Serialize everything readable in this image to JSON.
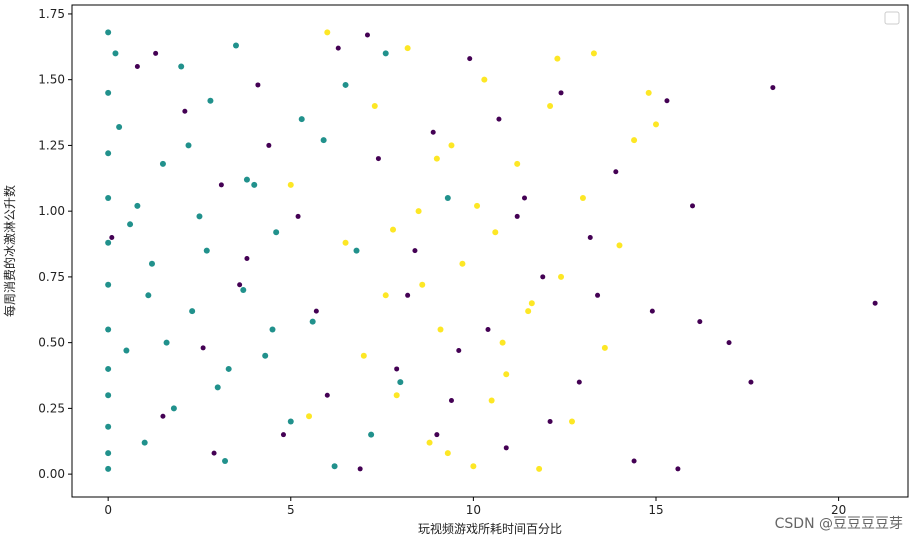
{
  "chart_data": {
    "type": "scatter",
    "xlabel": "玩视频游戏所耗时间百分比",
    "ylabel": "每周消费的冰激淋公升数",
    "annotation": "CSDN @豆豆豆豆芽",
    "xlim": [
      -0.99,
      21.9
    ],
    "ylim": [
      -0.087,
      1.784
    ],
    "xticks": [
      0,
      5,
      10,
      15,
      20
    ],
    "yticks": [
      {
        "value": 0,
        "label": "0.00"
      },
      {
        "value": 0.25,
        "label": "0.25"
      },
      {
        "value": 0.5,
        "label": "0.50"
      },
      {
        "value": 0.75,
        "label": "0.75"
      },
      {
        "value": 1,
        "label": "1.00"
      },
      {
        "value": 1.25,
        "label": "1.25"
      },
      {
        "value": 1.5,
        "label": "1.50"
      },
      {
        "value": 1.75,
        "label": "1.75"
      }
    ],
    "legend": "upper right",
    "series": [
      {
        "color": "#21918c",
        "x": [
          0,
          0,
          0,
          0,
          0,
          0,
          0,
          0,
          0,
          0,
          0,
          0,
          0.3,
          0.5,
          0.8,
          1.0,
          1.2,
          1.5,
          1.8,
          2.0,
          2.3,
          2.5,
          2.8,
          3.0,
          3.2,
          3.5,
          3.7,
          4.0,
          4.3,
          4.6,
          5.0,
          5.3,
          5.6,
          5.9,
          6.2,
          6.5,
          6.8,
          7.2,
          7.6,
          8.0,
          0.2,
          0.6,
          1.1,
          1.6,
          2.2,
          2.7,
          3.3,
          3.8,
          4.5,
          9.3
        ],
        "values": [
          1.68,
          1.45,
          1.22,
          1.05,
          0.88,
          0.72,
          0.55,
          0.4,
          0.3,
          0.18,
          0.08,
          0.02,
          1.32,
          0.47,
          1.02,
          0.12,
          0.8,
          1.18,
          0.25,
          1.55,
          0.62,
          0.98,
          1.42,
          0.33,
          0.05,
          1.63,
          0.7,
          1.1,
          0.45,
          0.92,
          0.2,
          1.35,
          0.58,
          1.27,
          0.03,
          1.48,
          0.85,
          0.15,
          1.6,
          0.35,
          1.6,
          0.95,
          0.68,
          0.5,
          1.25,
          0.85,
          0.4,
          1.12,
          0.55,
          1.05
        ]
      },
      {
        "color": "#440154",
        "x": [
          0.1,
          0.8,
          1.5,
          2.1,
          2.6,
          3.1,
          3.6,
          4.1,
          4.8,
          5.2,
          5.7,
          6.3,
          6.9,
          7.4,
          7.9,
          8.4,
          8.9,
          9.4,
          9.9,
          10.4,
          10.9,
          11.4,
          11.9,
          12.4,
          12.9,
          13.4,
          13.9,
          14.4,
          14.9,
          15.3,
          15.6,
          16.0,
          16.2,
          17.0,
          17.6,
          18.2,
          21.0,
          2.9,
          4.4,
          6.0,
          8.2,
          9.6,
          10.7,
          12.1,
          13.2,
          1.3,
          3.8,
          7.1,
          9.0,
          11.2
        ],
        "values": [
          0.9,
          1.55,
          0.22,
          1.38,
          0.48,
          1.1,
          0.72,
          1.48,
          0.15,
          0.98,
          0.62,
          1.62,
          0.02,
          1.2,
          0.4,
          0.85,
          1.3,
          0.28,
          1.58,
          0.55,
          0.1,
          1.05,
          0.75,
          1.45,
          0.35,
          0.68,
          1.15,
          0.05,
          0.62,
          1.42,
          0.02,
          1.02,
          0.58,
          0.5,
          0.35,
          1.47,
          0.65,
          0.08,
          1.25,
          0.3,
          0.68,
          0.47,
          1.35,
          0.2,
          0.9,
          1.6,
          0.82,
          1.67,
          0.15,
          0.98
        ]
      },
      {
        "color": "#fde725",
        "x": [
          5.0,
          5.5,
          6.0,
          6.5,
          7.0,
          7.3,
          7.6,
          7.9,
          8.2,
          8.5,
          8.8,
          9.1,
          9.4,
          9.7,
          10.0,
          10.3,
          10.6,
          10.9,
          11.2,
          11.5,
          11.8,
          12.1,
          12.4,
          12.7,
          13.0,
          13.3,
          13.6,
          14.0,
          14.4,
          14.8,
          15.0,
          7.8,
          8.6,
          9.3,
          10.1,
          10.8,
          11.6,
          12.3,
          9.0,
          10.5
        ],
        "values": [
          1.1,
          0.22,
          1.68,
          0.88,
          0.45,
          1.4,
          0.68,
          0.3,
          1.62,
          1.0,
          0.12,
          0.55,
          1.25,
          0.8,
          0.03,
          1.5,
          0.92,
          0.38,
          1.18,
          0.62,
          0.02,
          1.4,
          0.75,
          0.2,
          1.05,
          1.6,
          0.48,
          0.87,
          1.27,
          1.45,
          1.33,
          0.93,
          0.72,
          0.08,
          1.02,
          0.5,
          0.65,
          1.58,
          1.2,
          0.28
        ]
      }
    ]
  }
}
